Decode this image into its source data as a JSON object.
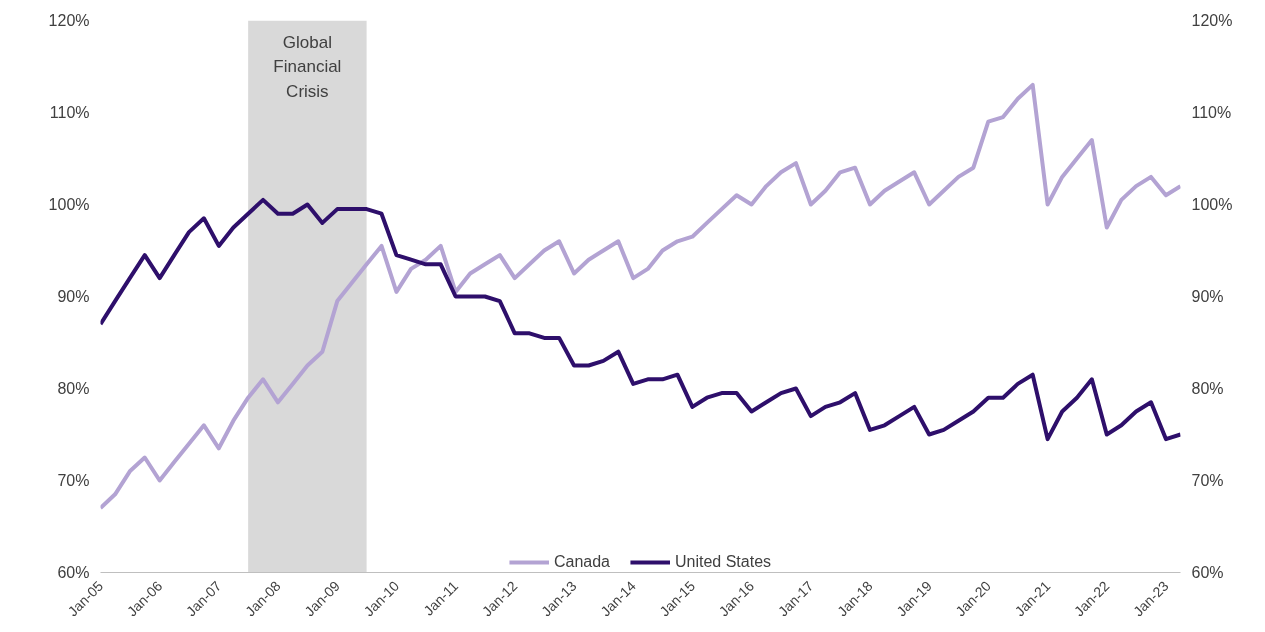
{
  "chart_data": {
    "type": "line",
    "x": [
      "2005-01",
      "2005-04",
      "2005-07",
      "2005-10",
      "2006-01",
      "2006-04",
      "2006-07",
      "2006-10",
      "2007-01",
      "2007-04",
      "2007-07",
      "2007-10",
      "2008-01",
      "2008-04",
      "2008-07",
      "2008-10",
      "2009-01",
      "2009-04",
      "2009-07",
      "2009-10",
      "2010-01",
      "2010-04",
      "2010-07",
      "2010-10",
      "2011-01",
      "2011-04",
      "2011-07",
      "2011-10",
      "2012-01",
      "2012-04",
      "2012-07",
      "2012-10",
      "2013-01",
      "2013-04",
      "2013-07",
      "2013-10",
      "2014-01",
      "2014-04",
      "2014-07",
      "2014-10",
      "2015-01",
      "2015-04",
      "2015-07",
      "2015-10",
      "2016-01",
      "2016-04",
      "2016-07",
      "2016-10",
      "2017-01",
      "2017-04",
      "2017-07",
      "2017-10",
      "2018-01",
      "2018-04",
      "2018-07",
      "2018-10",
      "2019-01",
      "2019-04",
      "2019-07",
      "2019-10",
      "2020-01",
      "2020-04",
      "2020-07",
      "2020-10",
      "2021-01",
      "2021-04",
      "2021-07",
      "2021-10",
      "2022-01",
      "2022-04",
      "2022-07",
      "2022-10",
      "2023-01",
      "2023-04"
    ],
    "series": [
      {
        "name": "Canada",
        "color": "#b3a3d3",
        "values": [
          67,
          68.5,
          71,
          72.5,
          70,
          72,
          74,
          76,
          73.5,
          76.5,
          79,
          81,
          78.5,
          80.5,
          82.5,
          84,
          89.5,
          91.5,
          93.5,
          95.5,
          90.5,
          93,
          94,
          95.5,
          90.5,
          92.5,
          93.5,
          94.5,
          92,
          93.5,
          95,
          96,
          92.5,
          94,
          95,
          96,
          92,
          93,
          95,
          96,
          96.5,
          98,
          99.5,
          101,
          100,
          102,
          103.5,
          104.5,
          100,
          101.5,
          103.5,
          104,
          100,
          101.5,
          102.5,
          103.5,
          100,
          101.5,
          103,
          104,
          109,
          109.5,
          111.5,
          113,
          100,
          103,
          105,
          107,
          97.5,
          100.5,
          102,
          103,
          101,
          102
        ]
      },
      {
        "name": "United States",
        "color": "#2e0f6b",
        "values": [
          87,
          89.5,
          92,
          94.5,
          92,
          94.5,
          97,
          98.5,
          95.5,
          97.5,
          99,
          100.5,
          99,
          99,
          100,
          98,
          99.5,
          99.5,
          99.5,
          99,
          94.5,
          94,
          93.5,
          93.5,
          90,
          90,
          90,
          89.5,
          86,
          86,
          85.5,
          85.5,
          82.5,
          82.5,
          83,
          84,
          80.5,
          81,
          81,
          81.5,
          78,
          79,
          79.5,
          79.5,
          77.5,
          78.5,
          79.5,
          80,
          77,
          78,
          78.5,
          79.5,
          75.5,
          76,
          77,
          78,
          75,
          75.5,
          76.5,
          77.5,
          79,
          79,
          80.5,
          81.5,
          74.5,
          77.5,
          79,
          81,
          75,
          76,
          77.5,
          78.5,
          74.5,
          75
        ]
      }
    ],
    "xlim": [
      "2005-01",
      "2023-04"
    ],
    "xticks": [
      {
        "value": "2005-01",
        "label": "Jan-05"
      },
      {
        "value": "2006-01",
        "label": "Jan-06"
      },
      {
        "value": "2007-01",
        "label": "Jan-07"
      },
      {
        "value": "2008-01",
        "label": "Jan-08"
      },
      {
        "value": "2009-01",
        "label": "Jan-09"
      },
      {
        "value": "2010-01",
        "label": "Jan-10"
      },
      {
        "value": "2011-01",
        "label": "Jan-11"
      },
      {
        "value": "2012-01",
        "label": "Jan-12"
      },
      {
        "value": "2013-01",
        "label": "Jan-13"
      },
      {
        "value": "2014-01",
        "label": "Jan-14"
      },
      {
        "value": "2015-01",
        "label": "Jan-15"
      },
      {
        "value": "2016-01",
        "label": "Jan-16"
      },
      {
        "value": "2017-01",
        "label": "Jan-17"
      },
      {
        "value": "2018-01",
        "label": "Jan-18"
      },
      {
        "value": "2019-01",
        "label": "Jan-19"
      },
      {
        "value": "2020-01",
        "label": "Jan-20"
      },
      {
        "value": "2021-01",
        "label": "Jan-21"
      },
      {
        "value": "2022-01",
        "label": "Jan-22"
      },
      {
        "value": "2023-01",
        "label": "Jan-23"
      }
    ],
    "ylim": [
      60,
      120
    ],
    "yticks": [
      {
        "value": 60,
        "label": "60%"
      },
      {
        "value": 70,
        "label": "70%"
      },
      {
        "value": 80,
        "label": "80%"
      },
      {
        "value": 90,
        "label": "90%"
      },
      {
        "value": 100,
        "label": "100%"
      },
      {
        "value": 110,
        "label": "110%"
      },
      {
        "value": 120,
        "label": "120%"
      }
    ],
    "y2lim": [
      60,
      120
    ],
    "y2ticks": [
      {
        "value": 60,
        "label": "60%"
      },
      {
        "value": 70,
        "label": "70%"
      },
      {
        "value": 80,
        "label": "80%"
      },
      {
        "value": 90,
        "label": "90%"
      },
      {
        "value": 100,
        "label": "100%"
      },
      {
        "value": 110,
        "label": "110%"
      },
      {
        "value": 120,
        "label": "120%"
      }
    ],
    "bands": [
      {
        "axis": "x",
        "from": "2007-07",
        "to": "2009-07",
        "label": "Global Financial Crisis",
        "color": "#d9d9d9"
      }
    ],
    "grid": false,
    "legend": "bottom",
    "marker": "none",
    "line_style": "solid"
  }
}
